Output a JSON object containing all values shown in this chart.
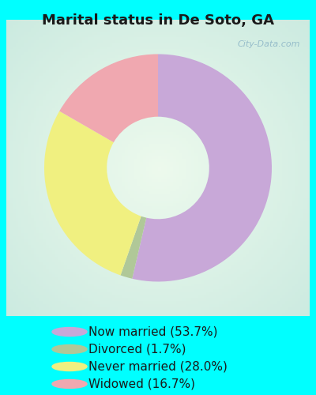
{
  "title": "Marital status in De Soto, GA",
  "slices": [
    53.7,
    1.7,
    28.0,
    16.7
  ],
  "labels": [
    "Now married (53.7%)",
    "Divorced (1.7%)",
    "Never married (28.0%)",
    "Widowed (16.7%)"
  ],
  "colors": [
    "#c8a8d8",
    "#b0c898",
    "#f0f080",
    "#f0a8b0"
  ],
  "bg_color": "#00ffff",
  "chart_bg_outer": "#c8e8d8",
  "chart_bg_inner": "#e8f8f0",
  "title_fontsize": 13,
  "legend_fontsize": 11,
  "watermark": "City-Data.com",
  "start_angle": 90,
  "donut_width": 0.55
}
